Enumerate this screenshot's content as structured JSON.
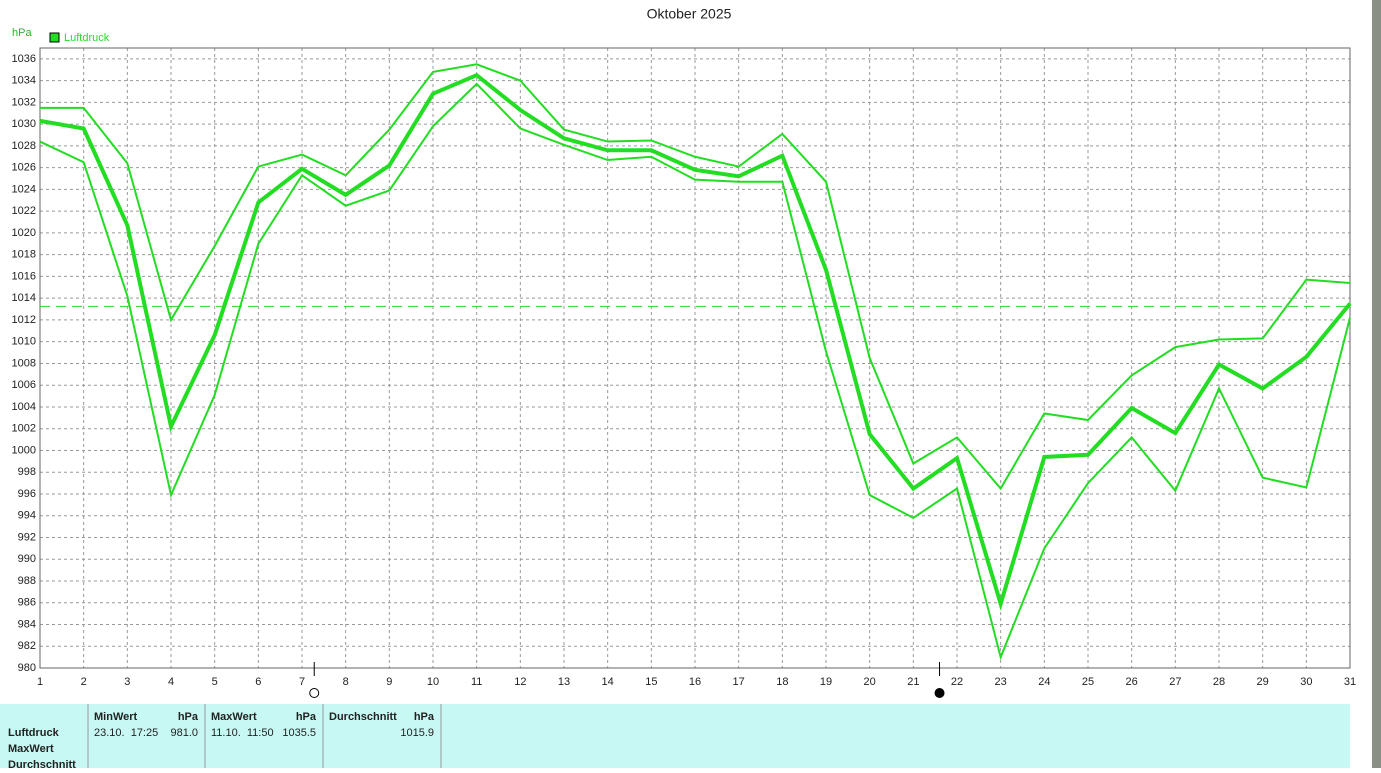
{
  "chart_data": {
    "type": "line",
    "title": "Oktober 2025",
    "y_unit": "hPa",
    "legend_label": "Luftdruck",
    "legend_color": "#22dd22",
    "x": [
      1,
      2,
      3,
      4,
      5,
      6,
      7,
      8,
      9,
      10,
      11,
      12,
      13,
      14,
      15,
      16,
      17,
      18,
      19,
      20,
      21,
      22,
      23,
      24,
      25,
      26,
      27,
      28,
      29,
      30,
      31
    ],
    "xlim": [
      1,
      31
    ],
    "xticks": [
      1,
      2,
      3,
      4,
      5,
      6,
      7,
      8,
      9,
      10,
      11,
      12,
      13,
      14,
      15,
      16,
      17,
      18,
      19,
      20,
      21,
      22,
      23,
      24,
      25,
      26,
      27,
      28,
      29,
      30,
      31
    ],
    "ylim": [
      980,
      1037
    ],
    "yticks": [
      980,
      982,
      984,
      986,
      988,
      990,
      992,
      994,
      996,
      998,
      1000,
      1002,
      1004,
      1006,
      1008,
      1010,
      1012,
      1014,
      1016,
      1018,
      1020,
      1022,
      1024,
      1026,
      1028,
      1030,
      1032,
      1034,
      1036
    ],
    "grid": true,
    "reference_line": 1013.25,
    "markers": [
      {
        "x": 7.28,
        "filled": false
      },
      {
        "x": 21.6,
        "filled": true
      }
    ],
    "series": [
      {
        "color": "#22dd22",
        "width": 2,
        "values": [
          1031.5,
          1031.5,
          1026.4,
          1012.0,
          1018.8,
          1026.1,
          1027.2,
          1025.3,
          1029.5,
          1034.8,
          1035.5,
          1034.0,
          1029.5,
          1028.4,
          1028.5,
          1027.0,
          1026.1,
          1029.1,
          1024.7,
          1008.5,
          998.8,
          1001.2,
          996.5,
          1003.4,
          1002.8,
          1006.9,
          1009.5,
          1010.2,
          1010.3,
          1015.7,
          1015.4
        ]
      },
      {
        "name": "Luftdruck",
        "color": "#22dd22",
        "width": 4,
        "values": [
          1030.3,
          1029.6,
          1020.7,
          1002.2,
          1010.6,
          1022.8,
          1025.9,
          1023.5,
          1026.2,
          1032.8,
          1034.5,
          1031.3,
          1028.7,
          1027.6,
          1027.6,
          1025.8,
          1025.2,
          1027.1,
          1016.6,
          1001.5,
          996.5,
          999.3,
          985.9,
          999.4,
          999.6,
          1003.9,
          1001.6,
          1007.9,
          1005.7,
          1008.6,
          1013.5
        ]
      },
      {
        "color": "#22dd22",
        "width": 2,
        "values": [
          1028.4,
          1026.5,
          1014.2,
          995.9,
          1005.1,
          1019.0,
          1025.3,
          1022.5,
          1023.9,
          1029.8,
          1033.7,
          1029.6,
          1028.1,
          1026.7,
          1027.0,
          1024.9,
          1024.7,
          1024.7,
          1009.1,
          995.9,
          993.8,
          996.5,
          981.0,
          991.0,
          997.0,
          1001.2,
          996.3,
          1005.7,
          997.5,
          996.6,
          1012.2
        ]
      }
    ]
  },
  "table": {
    "row_labels": [
      "Luftdruck",
      "MaxWert",
      "Durchschnitt"
    ],
    "columns": [
      {
        "header": "MinWert",
        "unit": "hPa",
        "date": "23.10.  17:25",
        "value": "981.0"
      },
      {
        "header": "MaxWert",
        "unit": "hPa",
        "date": "11.10.  11:50",
        "value": "1035.5"
      },
      {
        "header": "Durchschnitt",
        "unit": "hPa",
        "date": "",
        "value": "1015.9"
      }
    ]
  }
}
